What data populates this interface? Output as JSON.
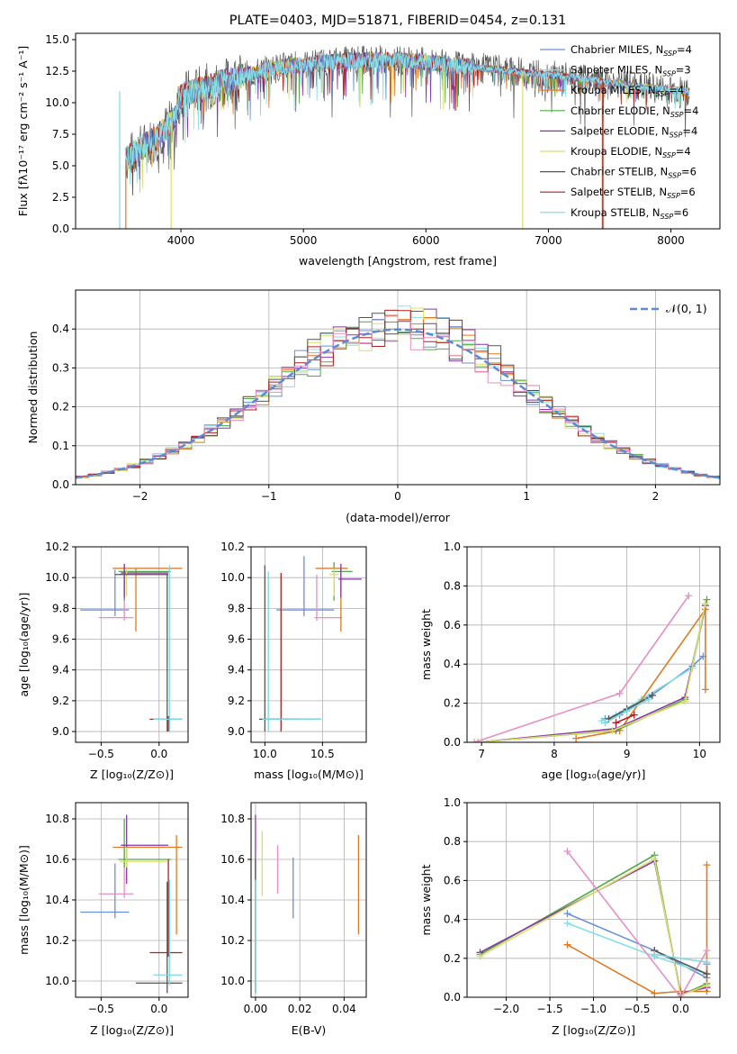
{
  "chart_data": [
    {
      "type": "line",
      "title": "PLATE=0403, MJD=51871, FIBERID=0454, z=0.131",
      "xlabel": "wavelength [Angstrom, rest frame]",
      "ylabel": "Flux [fλ10⁻¹⁷ erg cm⁻² s⁻¹ A⁻¹]",
      "xlim": [
        3140,
        8400
      ],
      "ylim": [
        0,
        15.5
      ],
      "xticks": [
        4000,
        5000,
        6000,
        7000,
        8000
      ],
      "yticks": [
        0.0,
        2.5,
        5.0,
        7.5,
        10.0,
        12.5,
        15.0
      ],
      "grid": false,
      "legend_position": "top-right",
      "x_range_data": [
        3550,
        8150
      ],
      "continuum_points": [
        [
          3550,
          5.5
        ],
        [
          3650,
          6.3
        ],
        [
          3800,
          7.2
        ],
        [
          3950,
          8.8
        ],
        [
          4000,
          10.6
        ],
        [
          4200,
          11.2
        ],
        [
          4500,
          12.1
        ],
        [
          4800,
          12.8
        ],
        [
          5000,
          13.0
        ],
        [
          5300,
          13.3
        ],
        [
          5600,
          13.4
        ],
        [
          5900,
          13.3
        ],
        [
          6100,
          13.1
        ],
        [
          6300,
          12.9
        ],
        [
          6600,
          12.6
        ],
        [
          6900,
          12.3
        ],
        [
          7200,
          12.0
        ],
        [
          7500,
          11.6
        ],
        [
          7800,
          11.2
        ],
        [
          8150,
          10.9
        ]
      ],
      "series": [
        {
          "name": "Chabrier MILES, N_SSP=4",
          "color": "#6a8fd6"
        },
        {
          "name": "Salpeter MILES, N_SSP=3",
          "color": "#86e0e6"
        },
        {
          "name": "Kroupa MILES, N_SSP=4",
          "color": "#e07a22"
        },
        {
          "name": "Chabrier ELODIE, N_SSP=4",
          "color": "#55a84a"
        },
        {
          "name": "Salpeter ELODIE, N_SSP=4",
          "color": "#8a35a8"
        },
        {
          "name": "Kroupa ELODIE, N_SSP=4",
          "color": "#d8e06a"
        },
        {
          "name": "Chabrier STELIB, N_SSP=6",
          "color": "#555555"
        },
        {
          "name": "Salpeter STELIB, N_SSP=6",
          "color": "#b21f1f"
        },
        {
          "name": "Kroupa STELIB, N_SSP=6",
          "color": "#7fd8e0"
        }
      ],
      "legend_display": [
        {
          "pre": "Chabrier MILES, N",
          "sub": "SSP",
          "post": "=4",
          "color": "#6a8fd6"
        },
        {
          "pre": "Salpeter MILES, N",
          "sub": "SSP",
          "post": "=3",
          "color": "#86e0e6"
        },
        {
          "pre": "Kroupa MILES, N",
          "sub": "SSP",
          "post": "=4",
          "color": "#e07a22"
        },
        {
          "pre": "Chabrier ELODIE, N",
          "sub": "SSP",
          "post": "=4",
          "color": "#55a84a"
        },
        {
          "pre": "Salpeter ELODIE, N",
          "sub": "SSP",
          "post": "=4",
          "color": "#8a35a8"
        },
        {
          "pre": "Kroupa ELODIE, N",
          "sub": "SSP",
          "post": "=4",
          "color": "#d8e06a"
        },
        {
          "pre": "Chabrier STELIB, N",
          "sub": "SSP",
          "post": "=6",
          "color": "#555555"
        },
        {
          "pre": "Salpeter STELIB, N",
          "sub": "SSP",
          "post": "=6",
          "color": "#b21f1f"
        },
        {
          "pre": "Kroupa STELIB, N",
          "sub": "SSP",
          "post": "=6",
          "color": "#7fd8e0"
        }
      ],
      "dips": [
        {
          "x": 3500,
          "to": 0,
          "color": "#7fd8e0"
        },
        {
          "x": 3550,
          "to": 0,
          "color": "#e07a22"
        },
        {
          "x": 3920,
          "to": 0,
          "color": "#d8e06a"
        },
        {
          "x": 6790,
          "to": 0,
          "color": "#d8e06a"
        },
        {
          "x": 7440,
          "to": 0,
          "color": "#e07a22"
        },
        {
          "x": 7445,
          "to": 0,
          "color": "#b21f1f"
        }
      ]
    },
    {
      "type": "histogram",
      "xlabel": "(data-model)/error",
      "ylabel": "Normed distribution",
      "xlim": [
        -2.5,
        2.5
      ],
      "ylim": [
        0,
        0.5
      ],
      "xticks": [
        -2,
        -1,
        0,
        1,
        2
      ],
      "yticks": [
        0.0,
        0.1,
        0.2,
        0.3,
        0.4
      ],
      "grid": true,
      "legend": [
        {
          "label": "𝒩(0, 1)",
          "color": "#5b8bd6",
          "style": "dashed"
        }
      ],
      "legend_position": "top-right",
      "gaussian": {
        "mu": 0,
        "sigma": 1
      },
      "bin_width": 0.1,
      "bin_start": -2.5,
      "series_colors": [
        "#6a8fd6",
        "#86e0e6",
        "#e07a22",
        "#55a84a",
        "#8a35a8",
        "#d8e06a",
        "#555555",
        "#b21f1f",
        "#e68fc4"
      ]
    },
    {
      "type": "errorbar",
      "xlabel": "Z [log₁₀(Z/Z⊙)]",
      "ylabel": "age  [log₁₀(age/yr)]",
      "xlim": [
        -0.72,
        0.25
      ],
      "ylim": [
        8.93,
        10.2
      ],
      "xticks": [
        -0.5,
        0.0
      ],
      "yticks": [
        9.0,
        9.2,
        9.4,
        9.6,
        9.8,
        10.0,
        10.2
      ],
      "grid": true,
      "points": [
        {
          "x": -0.38,
          "y": 9.79,
          "xl": -0.68,
          "xh": -0.26,
          "yl": 9.75,
          "yh": 10.05,
          "color": "#6a8fd6"
        },
        {
          "x": -0.3,
          "y": 9.74,
          "xl": -0.52,
          "xh": -0.22,
          "yl": 9.72,
          "yh": 10.02,
          "color": "#e68fc4"
        },
        {
          "x": -0.2,
          "y": 10.06,
          "xl": -0.4,
          "xh": 0.2,
          "yl": 9.65,
          "yh": 10.06,
          "color": "#e07a22"
        },
        {
          "x": -0.3,
          "y": 10.04,
          "xl": -0.35,
          "xh": 0.1,
          "yl": 9.85,
          "yh": 10.08,
          "color": "#55a84a"
        },
        {
          "x": -0.3,
          "y": 10.03,
          "xl": -0.33,
          "xh": 0.08,
          "yl": 9.87,
          "yh": 10.09,
          "color": "#8a35a8"
        },
        {
          "x": -0.28,
          "y": 10.02,
          "xl": -0.34,
          "xh": 0.07,
          "yl": 9.88,
          "yh": 10.06,
          "color": "#d8e06a"
        },
        {
          "x": 0.07,
          "y": 10.02,
          "xl": -0.38,
          "xh": 0.08,
          "yl": 9.0,
          "yh": 10.02,
          "color": "#555555"
        },
        {
          "x": 0.08,
          "y": 9.08,
          "xl": -0.08,
          "xh": 0.2,
          "yl": 9.0,
          "yh": 9.1,
          "color": "#b21f1f"
        },
        {
          "x": 0.09,
          "y": 9.08,
          "xl": -0.05,
          "xh": 0.2,
          "yl": 9.0,
          "yh": 10.08,
          "color": "#7fd8e0"
        }
      ]
    },
    {
      "type": "errorbar",
      "xlabel": "mass [log₁₀(M/M⊙)]",
      "ylabel": "",
      "xlim": [
        9.88,
        10.88
      ],
      "ylim": [
        8.93,
        10.2
      ],
      "xticks": [
        10.0,
        10.5
      ],
      "yticks": [
        9.0,
        9.2,
        9.4,
        9.6,
        9.8,
        10.0,
        10.2
      ],
      "grid": true,
      "points": [
        {
          "x": 10.34,
          "y": 9.79,
          "xl": 10.1,
          "xh": 10.6,
          "yl": 9.75,
          "yh": 10.14,
          "color": "#6a8fd6"
        },
        {
          "x": 10.45,
          "y": 9.74,
          "xl": 10.43,
          "xh": 10.67,
          "yl": 9.72,
          "yh": 10.02,
          "color": "#e68fc4"
        },
        {
          "x": 10.66,
          "y": 10.06,
          "xl": 10.44,
          "xh": 10.72,
          "yl": 9.65,
          "yh": 10.06,
          "color": "#e07a22"
        },
        {
          "x": 10.6,
          "y": 10.04,
          "xl": 10.58,
          "xh": 10.76,
          "yl": 9.85,
          "yh": 10.1,
          "color": "#55a84a"
        },
        {
          "x": 10.66,
          "y": 9.99,
          "xl": 10.64,
          "xh": 10.84,
          "yl": 9.87,
          "yh": 10.09,
          "color": "#8a35a8"
        },
        {
          "x": 10.6,
          "y": 10.02,
          "xl": 10.56,
          "xh": 10.64,
          "yl": 9.88,
          "yh": 10.06,
          "color": "#d8e06a"
        },
        {
          "x": 10.0,
          "y": 9.08,
          "xl": 9.95,
          "xh": 10.48,
          "yl": 9.0,
          "yh": 10.08,
          "color": "#555555"
        },
        {
          "x": 10.14,
          "y": 9.08,
          "xl": 10.0,
          "xh": 10.28,
          "yl": 9.0,
          "yh": 10.03,
          "color": "#b21f1f"
        },
        {
          "x": 10.03,
          "y": 9.08,
          "xl": 9.98,
          "xh": 10.49,
          "yl": 9.0,
          "yh": 10.04,
          "color": "#7fd8e0"
        }
      ]
    },
    {
      "type": "line",
      "xlabel": "age  [log₁₀(age/yr)]",
      "ylabel": "mass weight",
      "xlim": [
        6.8,
        10.28
      ],
      "ylim": [
        0,
        1.0
      ],
      "xticks": [
        7,
        8,
        9,
        10
      ],
      "yticks": [
        0.0,
        0.2,
        0.4,
        0.6,
        0.8,
        1.0
      ],
      "grid": true,
      "series": [
        {
          "color": "#6a8fd6",
          "x": [
            8.7,
            8.9,
            9.3,
            9.9,
            10.05
          ],
          "y": [
            0.12,
            0.14,
            0.23,
            0.39,
            0.44
          ]
        },
        {
          "color": "#86e0e6",
          "x": [
            8.65,
            8.85,
            9.2,
            9.9,
            10.08
          ],
          "y": [
            0.11,
            0.14,
            0.22,
            0.38,
            0.7
          ]
        },
        {
          "color": "#e07a22",
          "x": [
            8.3,
            8.9,
            10.08,
            10.08
          ],
          "y": [
            0.02,
            0.06,
            0.68,
            0.27
          ]
        },
        {
          "color": "#55a84a",
          "x": [
            6.95,
            8.85,
            9.8,
            10.1
          ],
          "y": [
            0.0,
            0.06,
            0.22,
            0.73
          ]
        },
        {
          "color": "#8a35a8",
          "x": [
            6.95,
            8.85,
            9.8,
            10.08
          ],
          "y": [
            0.0,
            0.07,
            0.23,
            0.7
          ]
        },
        {
          "color": "#d8e06a",
          "x": [
            6.95,
            8.8,
            9.8,
            10.08
          ],
          "y": [
            0.0,
            0.06,
            0.21,
            0.71
          ]
        },
        {
          "color": "#555555",
          "x": [
            8.75,
            9.0,
            9.35
          ],
          "y": [
            0.12,
            0.17,
            0.24
          ]
        },
        {
          "color": "#b21f1f",
          "x": [
            8.85,
            9.1
          ],
          "y": [
            0.1,
            0.14
          ]
        },
        {
          "color": "#e68fc4",
          "x": [
            6.9,
            8.9,
            9.85
          ],
          "y": [
            0.0,
            0.25,
            0.75
          ]
        },
        {
          "color": "#7fd8e0",
          "x": [
            8.7,
            9.0,
            9.3
          ],
          "y": [
            0.1,
            0.16,
            0.22
          ]
        }
      ]
    },
    {
      "type": "errorbar",
      "xlabel": "Z [log₁₀(Z/Z⊙)]",
      "ylabel": "mass [log₁₀(M/M⊙)]",
      "xlim": [
        -0.72,
        0.25
      ],
      "ylim": [
        9.92,
        10.88
      ],
      "xticks": [
        -0.5,
        0.0
      ],
      "yticks": [
        10.0,
        10.2,
        10.4,
        10.6,
        10.8
      ],
      "grid": true,
      "points": [
        {
          "x": -0.38,
          "y": 10.34,
          "xl": -0.68,
          "xh": -0.26,
          "yl": 10.31,
          "yh": 10.58,
          "color": "#6a8fd6"
        },
        {
          "x": -0.3,
          "y": 10.43,
          "xl": -0.52,
          "xh": -0.22,
          "yl": 10.41,
          "yh": 10.65,
          "color": "#e68fc4"
        },
        {
          "x": 0.15,
          "y": 10.66,
          "xl": -0.4,
          "xh": 0.2,
          "yl": 10.23,
          "yh": 10.72,
          "color": "#e07a22"
        },
        {
          "x": -0.3,
          "y": 10.6,
          "xl": -0.35,
          "xh": 0.1,
          "yl": 10.56,
          "yh": 10.8,
          "color": "#55a84a"
        },
        {
          "x": -0.28,
          "y": 10.67,
          "xl": -0.33,
          "xh": 0.08,
          "yl": 10.48,
          "yh": 10.82,
          "color": "#8a35a8"
        },
        {
          "x": -0.28,
          "y": 10.59,
          "xl": -0.34,
          "xh": 0.07,
          "yl": 10.56,
          "yh": 10.66,
          "color": "#d8e06a"
        },
        {
          "x": 0.07,
          "y": 9.99,
          "xl": -0.2,
          "xh": 0.2,
          "yl": 9.94,
          "yh": 10.49,
          "color": "#555555"
        },
        {
          "x": 0.08,
          "y": 10.14,
          "xl": -0.08,
          "xh": 0.2,
          "yl": 10.12,
          "yh": 10.6,
          "color": "#b21f1f"
        },
        {
          "x": 0.09,
          "y": 10.03,
          "xl": -0.05,
          "xh": 0.2,
          "yl": 9.98,
          "yh": 10.5,
          "color": "#7fd8e0"
        }
      ]
    },
    {
      "type": "errorbar",
      "xlabel": "E(B-V)",
      "ylabel": "",
      "xlim": [
        -0.002,
        0.05
      ],
      "ylim": [
        9.92,
        10.88
      ],
      "xticks": [
        0.0,
        0.02,
        0.04
      ],
      "yticks": [
        10.0,
        10.2,
        10.4,
        10.6,
        10.8
      ],
      "grid": true,
      "points": [
        {
          "x": 0.0,
          "y": 10.34,
          "yl": 9.94,
          "yh": 10.82,
          "color": "#8a35a8"
        },
        {
          "x": 0.0,
          "y": 10.34,
          "yl": 9.94,
          "yh": 10.6,
          "color": "#555555"
        },
        {
          "x": 0.003,
          "y": 10.55,
          "yl": 10.42,
          "yh": 10.74,
          "color": "#d8e06a"
        },
        {
          "x": 0.01,
          "y": 10.55,
          "yl": 10.43,
          "yh": 10.67,
          "color": "#e68fc4"
        },
        {
          "x": 0.017,
          "y": 10.45,
          "yl": 10.31,
          "yh": 10.61,
          "color": "#6a8fd6"
        },
        {
          "x": 0.0465,
          "y": 10.5,
          "yl": 10.23,
          "yh": 10.72,
          "color": "#e07a22"
        },
        {
          "x": 0.0,
          "y": 10.2,
          "yl": 9.94,
          "yh": 10.5,
          "color": "#7fd8e0"
        }
      ]
    },
    {
      "type": "line",
      "xlabel": "Z [log₁₀(Z/Z⊙)]",
      "ylabel": "mass weight",
      "xlim": [
        -2.45,
        0.45
      ],
      "ylim": [
        0,
        1.0
      ],
      "xticks": [
        -2.0,
        -1.5,
        -1.0,
        -0.5,
        0.0
      ],
      "yticks": [
        0.0,
        0.2,
        0.4,
        0.6,
        0.8,
        1.0
      ],
      "grid": true,
      "series": [
        {
          "color": "#6a8fd6",
          "x": [
            -1.3,
            -0.3,
            0.3,
            0.3
          ],
          "y": [
            0.43,
            0.24,
            0.1,
            0.17
          ]
        },
        {
          "color": "#86e0e6",
          "x": [
            -1.3,
            -0.3,
            0.3
          ],
          "y": [
            0.38,
            0.21,
            0.12
          ]
        },
        {
          "color": "#e07a22",
          "x": [
            -1.3,
            -0.3,
            0.0,
            0.3,
            0.3
          ],
          "y": [
            0.27,
            0.02,
            0.03,
            0.03,
            0.68
          ]
        },
        {
          "color": "#55a84a",
          "x": [
            -2.3,
            -0.3,
            0.0,
            0.3
          ],
          "y": [
            0.22,
            0.73,
            0.01,
            0.07
          ]
        },
        {
          "color": "#8a35a8",
          "x": [
            -2.3,
            -0.3,
            0.0,
            0.3
          ],
          "y": [
            0.23,
            0.7,
            0.02,
            0.05
          ]
        },
        {
          "color": "#d8e06a",
          "x": [
            -2.3,
            -0.3,
            0.0,
            0.3
          ],
          "y": [
            0.21,
            0.71,
            0.01,
            0.06
          ]
        },
        {
          "color": "#e68fc4",
          "x": [
            -1.3,
            0.0,
            0.3
          ],
          "y": [
            0.75,
            0.0,
            0.24
          ]
        },
        {
          "color": "#555555",
          "x": [
            -0.3,
            0.3
          ],
          "y": [
            0.24,
            0.12
          ]
        },
        {
          "color": "#7fd8e0",
          "x": [
            -0.3,
            0.3
          ],
          "y": [
            0.22,
            0.18
          ]
        }
      ]
    }
  ]
}
